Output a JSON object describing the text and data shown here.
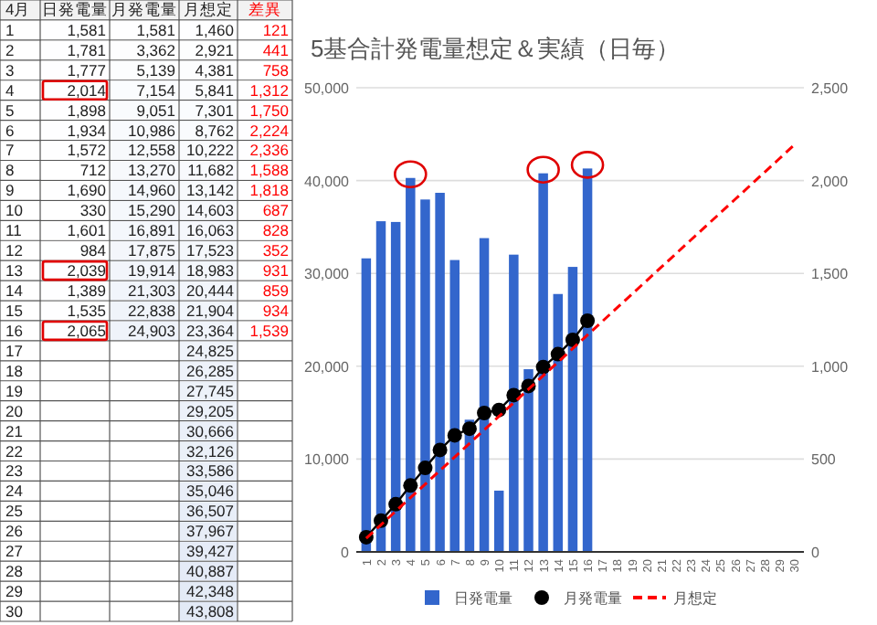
{
  "chart_data": [
    {
      "type": "heatmap",
      "ylabel": "4月",
      "categories": [
        "日発電量",
        "月発電量",
        "月想定",
        "差異"
      ],
      "y_categories": [
        "1",
        "2",
        "3",
        "4",
        "5",
        "6",
        "7",
        "8",
        "9",
        "10",
        "11",
        "12",
        "13",
        "14",
        "15",
        "16",
        "17",
        "18",
        "19",
        "20",
        "21",
        "22",
        "23",
        "24",
        "25",
        "26",
        "27",
        "28",
        "29",
        "30"
      ],
      "cells": [
        [
          1581,
          1581,
          1460,
          121
        ],
        [
          1781,
          3362,
          2921,
          441
        ],
        [
          1777,
          5139,
          4381,
          758
        ],
        [
          2014,
          7154,
          5841,
          1312
        ],
        [
          1898,
          9051,
          7301,
          1750
        ],
        [
          1934,
          10986,
          8762,
          2224
        ],
        [
          1572,
          12558,
          10222,
          2336
        ],
        [
          712,
          13270,
          11682,
          1588
        ],
        [
          1690,
          14960,
          13142,
          1818
        ],
        [
          330,
          15290,
          14603,
          687
        ],
        [
          1601,
          16891,
          16063,
          828
        ],
        [
          984,
          17875,
          17523,
          352
        ],
        [
          2039,
          19914,
          18983,
          931
        ],
        [
          1389,
          21303,
          20444,
          859
        ],
        [
          1535,
          22838,
          21904,
          934
        ],
        [
          2065,
          24903,
          23364,
          1539
        ],
        [
          null,
          null,
          24825,
          null
        ],
        [
          null,
          null,
          26285,
          null
        ],
        [
          null,
          null,
          27745,
          null
        ],
        [
          null,
          null,
          29205,
          null
        ],
        [
          null,
          null,
          30666,
          null
        ],
        [
          null,
          null,
          32126,
          null
        ],
        [
          null,
          null,
          33586,
          null
        ],
        [
          null,
          null,
          35046,
          null
        ],
        [
          null,
          null,
          36507,
          null
        ],
        [
          null,
          null,
          37967,
          null
        ],
        [
          null,
          null,
          39427,
          null
        ],
        [
          null,
          null,
          40887,
          null
        ],
        [
          null,
          null,
          42348,
          null
        ],
        [
          null,
          null,
          43808,
          null
        ]
      ],
      "cell_labels": [
        [
          "1,581",
          "1,581",
          "1,460",
          "121"
        ],
        [
          "1,781",
          "3,362",
          "2,921",
          "441"
        ],
        [
          "1,777",
          "5,139",
          "4,381",
          "758"
        ],
        [
          "2,014",
          "7,154",
          "5,841",
          "1,312"
        ],
        [
          "1,898",
          "9,051",
          "7,301",
          "1,750"
        ],
        [
          "1,934",
          "10,986",
          "8,762",
          "2,224"
        ],
        [
          "1,572",
          "12,558",
          "10,222",
          "2,336"
        ],
        [
          "712",
          "13,270",
          "11,682",
          "1,588"
        ],
        [
          "1,690",
          "14,960",
          "13,142",
          "1,818"
        ],
        [
          "330",
          "15,290",
          "14,603",
          "687"
        ],
        [
          "1,601",
          "16,891",
          "16,063",
          "828"
        ],
        [
          "984",
          "17,875",
          "17,523",
          "352"
        ],
        [
          "2,039",
          "19,914",
          "18,983",
          "931"
        ],
        [
          "1,389",
          "21,303",
          "20,444",
          "859"
        ],
        [
          "1,535",
          "22,838",
          "21,904",
          "934"
        ],
        [
          "2,065",
          "24,903",
          "23,364",
          "1,539"
        ],
        [
          null,
          null,
          "24,825",
          null
        ],
        [
          null,
          null,
          "26,285",
          null
        ],
        [
          null,
          null,
          "27,745",
          null
        ],
        [
          null,
          null,
          "29,205",
          null
        ],
        [
          null,
          null,
          "30,666",
          null
        ],
        [
          null,
          null,
          "32,126",
          null
        ],
        [
          null,
          null,
          "33,586",
          null
        ],
        [
          null,
          null,
          "35,046",
          null
        ],
        [
          null,
          null,
          "36,507",
          null
        ],
        [
          null,
          null,
          "37,967",
          null
        ],
        [
          null,
          null,
          "39,427",
          null
        ],
        [
          null,
          null,
          "40,887",
          null
        ],
        [
          null,
          null,
          "42,348",
          null
        ],
        [
          null,
          null,
          "43,808",
          null
        ]
      ]
    },
    {
      "type": "bar",
      "title": "5基合計発電量想定＆実績（日毎）",
      "categories": [
        "1",
        "2",
        "3",
        "4",
        "5",
        "6",
        "7",
        "8",
        "9",
        "10",
        "11",
        "12",
        "13",
        "14",
        "15",
        "16",
        "17",
        "18",
        "19",
        "20",
        "21",
        "22",
        "23",
        "24",
        "25",
        "26",
        "27",
        "28",
        "29",
        "30"
      ],
      "ylim": [
        0,
        50000
      ],
      "yticks": [
        0,
        {
          "value": 10000,
          "label": "10,000"
        },
        {
          "value": 20000,
          "label": "20,000"
        },
        {
          "value": 30000,
          "label": "30,000"
        },
        {
          "value": 40000,
          "label": "40,000"
        },
        {
          "value": 50000,
          "label": "50,000"
        }
      ],
      "y2lim": [
        0,
        2500
      ],
      "y2ticks": [
        0,
        500,
        {
          "value": 1000,
          "label": "1,000"
        },
        {
          "value": 1500,
          "label": "1,500"
        },
        {
          "value": 2000,
          "label": "2,000"
        },
        {
          "value": 2500,
          "label": "2,500"
        }
      ],
      "grid": "y",
      "legend": "bottom",
      "series": [
        {
          "name": "日発電量",
          "type": "bar",
          "axis": "y2",
          "color": "#3366cc",
          "values": [
            1581,
            1781,
            1777,
            2014,
            1898,
            1934,
            1572,
            712,
            1690,
            330,
            1601,
            984,
            2039,
            1389,
            1535,
            2065,
            null,
            null,
            null,
            null,
            null,
            null,
            null,
            null,
            null,
            null,
            null,
            null,
            null,
            null
          ]
        },
        {
          "name": "月発電量",
          "type": "line",
          "marker": "circle",
          "line_style": "solid",
          "color": "#000000",
          "values": [
            1581,
            3362,
            5139,
            7154,
            9051,
            10986,
            12558,
            13270,
            14960,
            15290,
            16891,
            17875,
            19914,
            21303,
            22838,
            24903,
            null,
            null,
            null,
            null,
            null,
            null,
            null,
            null,
            null,
            null,
            null,
            null,
            null,
            null
          ]
        },
        {
          "name": "月想定",
          "type": "line",
          "marker": "none",
          "line_style": "dashed",
          "color": "#ff0000",
          "values": [
            1460,
            2921,
            4381,
            5841,
            7301,
            8762,
            10222,
            11682,
            13142,
            14603,
            16063,
            17523,
            18983,
            20444,
            21904,
            23364,
            24825,
            26285,
            27745,
            29205,
            30666,
            32126,
            33586,
            35046,
            36507,
            37967,
            39427,
            40887,
            42348,
            43808
          ]
        }
      ]
    }
  ]
}
